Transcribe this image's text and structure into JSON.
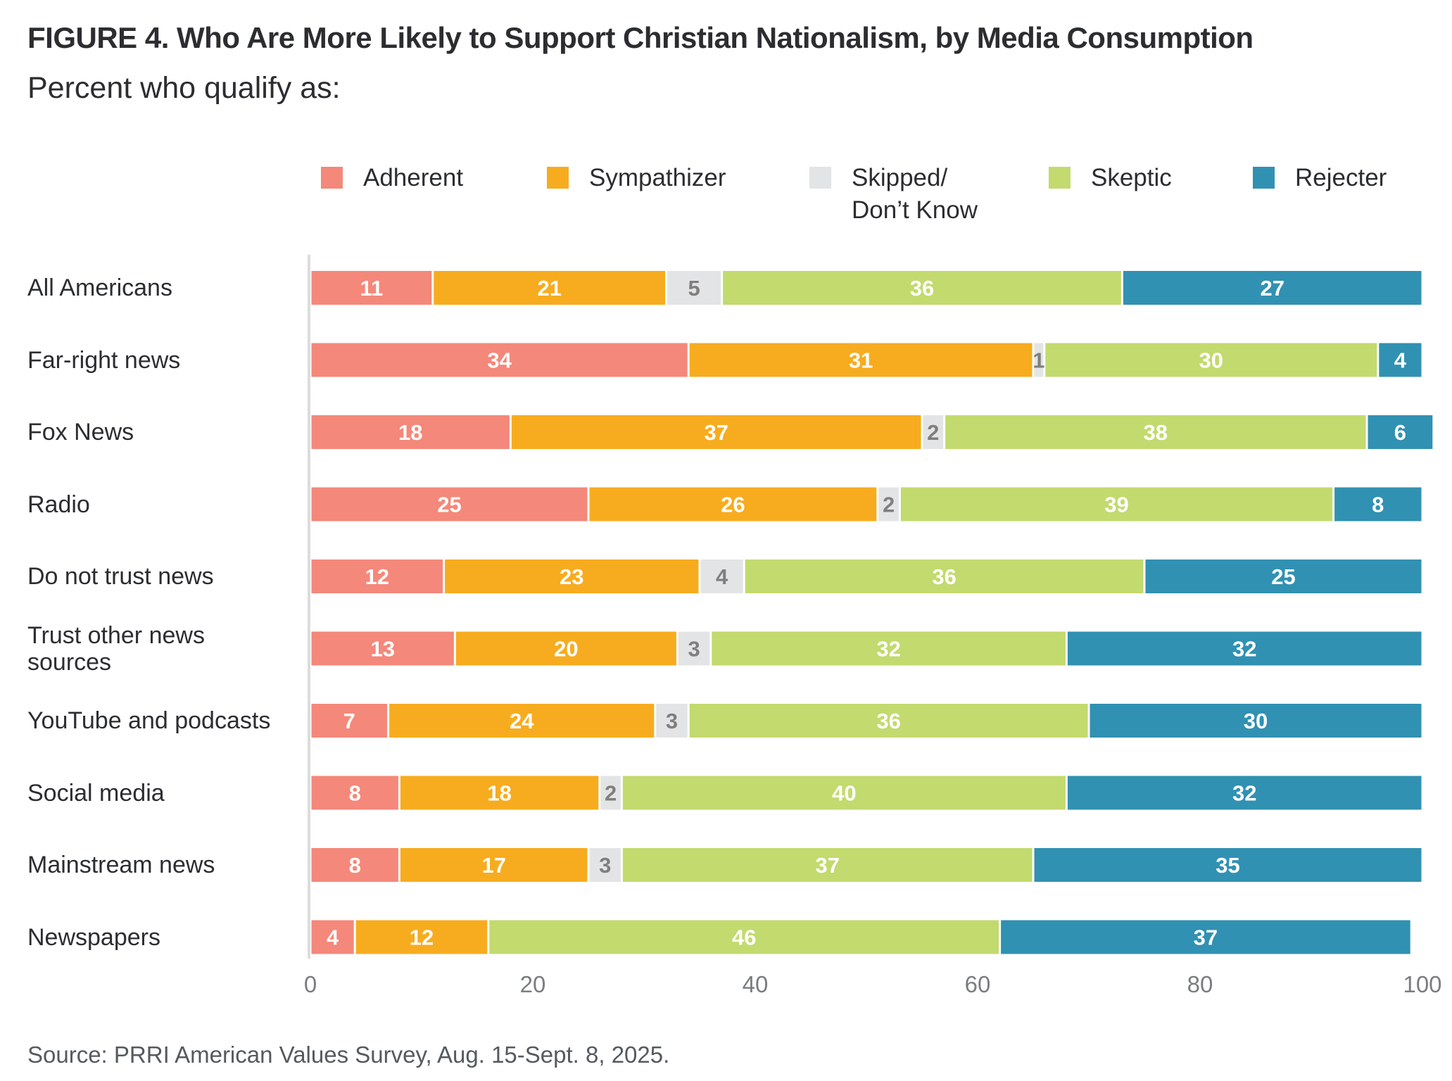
{
  "header": {
    "title": "FIGURE 4.  Who Are More Likely to Support Christian Nationalism, by Media Consumption",
    "subtitle": "Percent who qualify as:"
  },
  "legend": [
    {
      "label": "Adherent",
      "color": "#f4887a"
    },
    {
      "label": "Sympathizer",
      "color": "#f7ac1f"
    },
    {
      "label": "Skipped/\nDon’t Know",
      "label_line1": "Skipped/",
      "label_line2": "Don’t Know",
      "color": "#e3e4e6"
    },
    {
      "label": "Skeptic",
      "color": "#c2da6e"
    },
    {
      "label": "Rejecter",
      "color": "#3191b2"
    }
  ],
  "footer": {
    "source": "Source: PRRI American Values Survey, Aug. 15-Sept. 8, 2025."
  },
  "chart_data": {
    "type": "bar",
    "orientation": "horizontal",
    "stacked": true,
    "title": "FIGURE 4.  Who Are More Likely to Support Christian Nationalism, by Media Consumption",
    "subtitle": "Percent who qualify as:",
    "xlabel": "",
    "ylabel": "",
    "xlim": [
      0,
      100
    ],
    "x_ticks": [
      0,
      20,
      40,
      60,
      80,
      100
    ],
    "grid": false,
    "legend_position": "top",
    "categories": [
      "All Americans",
      "Far-right news",
      "Fox News",
      "Radio",
      "Do not trust news",
      "Trust other news sources",
      "YouTube and podcasts",
      "Social media",
      "Mainstream news",
      "Newspapers"
    ],
    "category_label_lines": [
      [
        "All Americans"
      ],
      [
        "Far-right news"
      ],
      [
        "Fox News"
      ],
      [
        "Radio"
      ],
      [
        "Do not trust news"
      ],
      [
        "Trust other news",
        "sources"
      ],
      [
        "YouTube and podcasts"
      ],
      [
        "Social media"
      ],
      [
        "Mainstream news"
      ],
      [
        "Newspapers"
      ]
    ],
    "series": [
      {
        "name": "Adherent",
        "color": "#f4887a",
        "label_color": "#ffffff",
        "values": [
          11,
          34,
          18,
          25,
          12,
          13,
          7,
          8,
          8,
          4
        ]
      },
      {
        "name": "Sympathizer",
        "color": "#f7ac1f",
        "label_color": "#ffffff",
        "values": [
          21,
          31,
          37,
          26,
          23,
          20,
          24,
          18,
          17,
          12
        ]
      },
      {
        "name": "Skipped/Don’t Know",
        "color": "#e3e4e6",
        "label_color": "#807f7e",
        "values": [
          5,
          1,
          2,
          2,
          4,
          3,
          3,
          2,
          3,
          0
        ]
      },
      {
        "name": "Skeptic",
        "color": "#c2da6e",
        "label_color": "#ffffff",
        "values": [
          36,
          30,
          38,
          39,
          36,
          32,
          36,
          40,
          37,
          46
        ]
      },
      {
        "name": "Rejecter",
        "color": "#3191b2",
        "label_color": "#ffffff",
        "values": [
          27,
          4,
          6,
          8,
          25,
          32,
          30,
          32,
          35,
          37
        ]
      }
    ]
  }
}
